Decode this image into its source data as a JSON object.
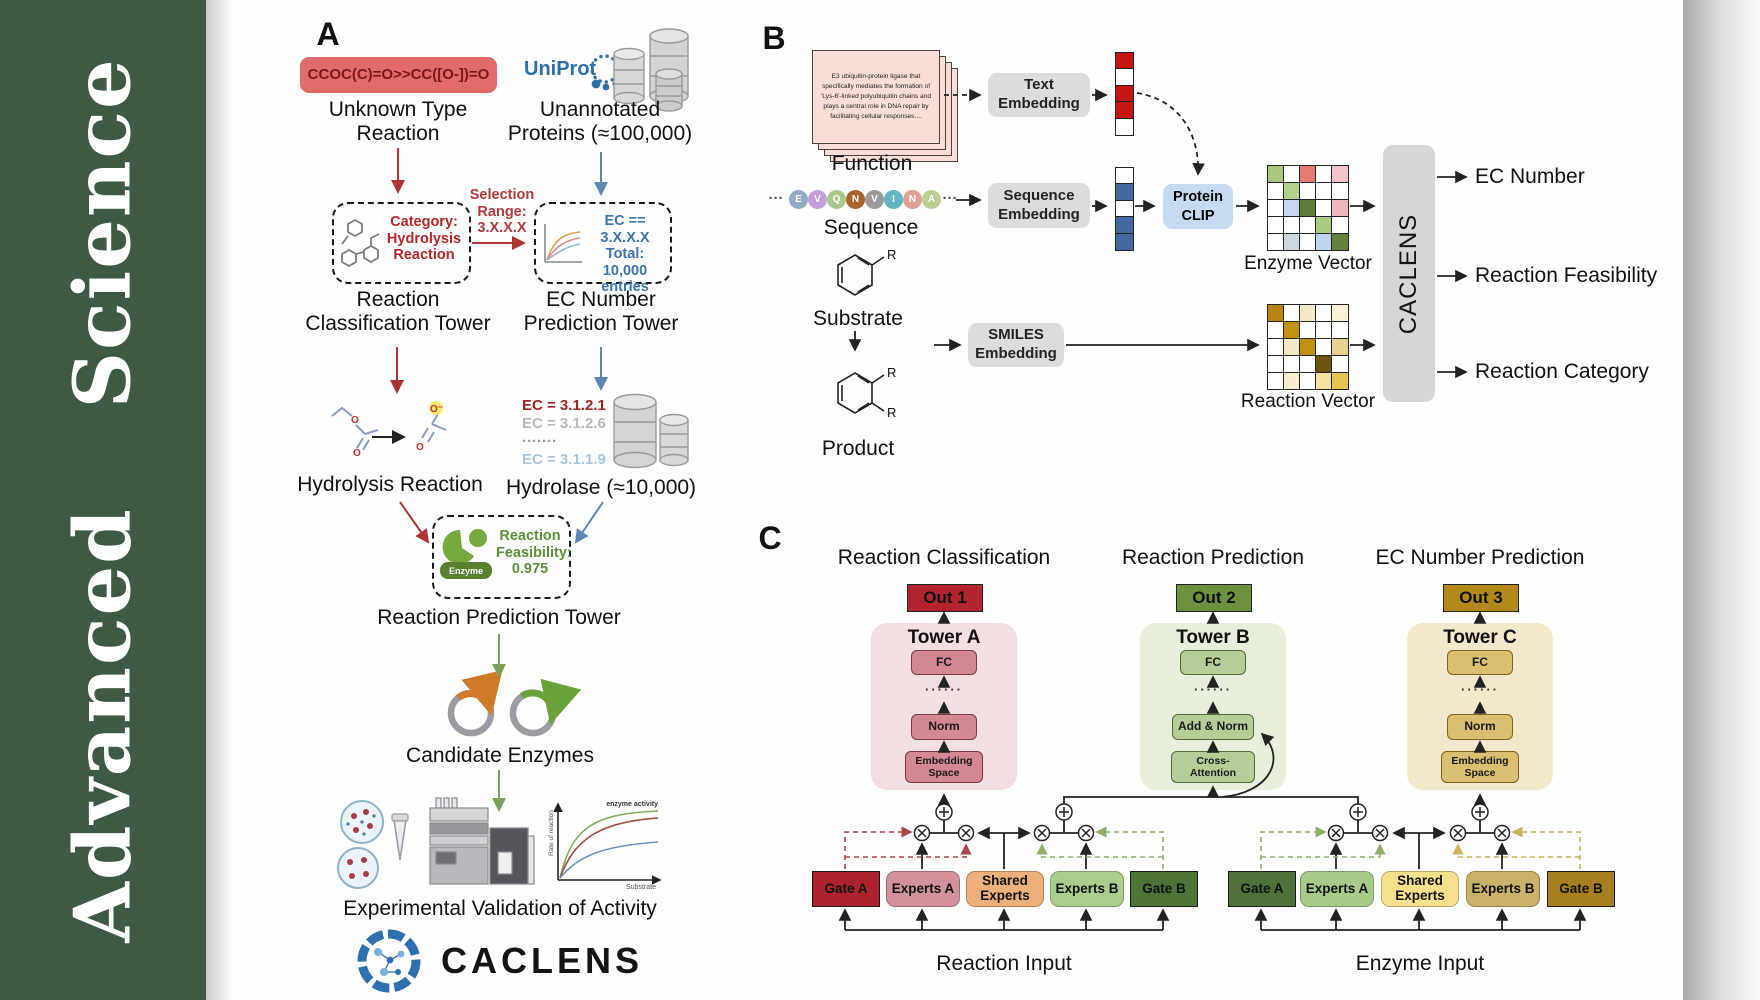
{
  "sidebar": {
    "journal_title": "Advanced Science"
  },
  "panelA": {
    "label": "A",
    "smiles": "CCOC(C)=O>>CC([O-])=O",
    "unknown_reaction_label": "Unknown Type\nReaction",
    "uniprot_wordmark": "UniProt",
    "unannotated_label": "Unannotated\nProteins (≈100,000)",
    "selection_range_label": "Selection\nRange:\n3.X.X.X",
    "category_box_text": "Category:\nHydrolysis\nReaction",
    "ec_box_text": "EC == 3.X.X.X\nTotal: 10,000\nentries",
    "reaction_classification_tower": "Reaction\nClassification Tower",
    "ec_number_prediction_tower": "EC Number\nPrediction Tower",
    "hydrolysis_reaction_label": "Hydrolysis Reaction",
    "ec_list": [
      {
        "text": "EC = 3.1.2.1",
        "color": "#9c2323"
      },
      {
        "text": "EC = 3.1.2.6",
        "color": "#b9b9b9"
      },
      {
        "text": "·······",
        "color": "#9a9a9a"
      },
      {
        "text": "EC = 3.1.1.9",
        "color": "#aac4de"
      }
    ],
    "hydrolase_label": "Hydrolase (≈10,000)",
    "enzyme_icon_label": "Enzyme",
    "feasibility_text": "Reaction\nFeasibility:\n0.975",
    "reaction_prediction_tower": "Reaction Prediction Tower",
    "candidate_enzymes_label": "Candidate Enzymes",
    "activity_graph": {
      "annotation": "enzyme activity",
      "ylabel": "Rate of reaction",
      "xlabel": "Substrate"
    },
    "experimental_validation_label": "Experimental Validation of Activity",
    "caclens_wordmark": "CACLENS"
  },
  "panelB": {
    "label": "B",
    "function_card_text": "E3 ubiquitin-protein ligase that specifically mediates the formation of 'Lys-6'-linked polyubiquitin chains and plays a central role in DNA repair by facilitating cellular responses....",
    "function_label": "Function",
    "ellipsis": "···",
    "sequence_residues": [
      {
        "letter": "E",
        "color": "#93aac6"
      },
      {
        "letter": "V",
        "color": "#c39edd"
      },
      {
        "letter": "Q",
        "color": "#a9c68f"
      },
      {
        "letter": "N",
        "color": "#a9622a"
      },
      {
        "letter": "V",
        "color": "#9a9a9a"
      },
      {
        "letter": "I",
        "color": "#62b4c2"
      },
      {
        "letter": "N",
        "color": "#e2a092"
      },
      {
        "letter": "A",
        "color": "#b9cf92"
      }
    ],
    "sequence_label": "Sequence",
    "substrate_label": "Substrate",
    "product_label": "Product",
    "r_group": "R",
    "text_embedding": "Text\nEmbedding",
    "sequence_embedding": "Sequence\nEmbedding",
    "smiles_embedding": "SMILES\nEmbedding",
    "protein_clip": "Protein\nCLIP",
    "text_vector_cells": [
      "#c41414",
      "#ffffff",
      "#c41414",
      "#c41414",
      "#ffffff"
    ],
    "sequence_vector_cells": [
      "#ffffff",
      "#44679e",
      "#ffffff",
      "#44679e",
      "#44679e"
    ],
    "enzyme_matrix": [
      [
        "#a9c77f",
        "#ffffff",
        "#e37c72",
        "#ffffff",
        "#f2c5cb"
      ],
      [
        "#ffffff",
        "#b3d08c",
        "#ffffff",
        "#ffffff",
        "#ffffff"
      ],
      [
        "#ffffff",
        "#c7d8ec",
        "#5c7a38",
        "#ffffff",
        "#f0b8bd"
      ],
      [
        "#ffffff",
        "#ffffff",
        "#ffffff",
        "#a9cc80",
        "#ffffff"
      ],
      [
        "#ffffff",
        "#ccd6e0",
        "#ffffff",
        "#bcd4ee",
        "#64823c"
      ]
    ],
    "reaction_matrix": [
      [
        "#b8860f",
        "#ffffff",
        "#f3e9c3",
        "#ffffff",
        "#faf2d8"
      ],
      [
        "#ffffff",
        "#c1920f",
        "#ffffff",
        "#ffffff",
        "#ffffff"
      ],
      [
        "#ffffff",
        "#f3e9c3",
        "#c1920f",
        "#ffffff",
        "#e6d193"
      ],
      [
        "#ffffff",
        "#ffffff",
        "#ffffff",
        "#6f5410",
        "#ffffff"
      ],
      [
        "#ffffff",
        "#f7eecb",
        "#ffffff",
        "#f3e3a1",
        "#e3c44d"
      ]
    ],
    "enzyme_vector_label": "Enzyme Vector",
    "reaction_vector_label": "Reaction Vector",
    "caclens_bar_label": "CACLENS",
    "outputs": [
      "EC Number",
      "Reaction Feasibility",
      "Reaction Category"
    ]
  },
  "panelC": {
    "label": "C",
    "headings": [
      "Reaction Classification",
      "Reaction Prediction",
      "EC Number Prediction"
    ],
    "outs": [
      "Out 1",
      "Out 2",
      "Out 3"
    ],
    "towers": [
      {
        "title": "Tower A",
        "layers": [
          "FC",
          "······",
          "Norm",
          "Embedding\nSpace"
        ]
      },
      {
        "title": "Tower B",
        "layers": [
          "FC",
          "······",
          "Add & Norm",
          "Cross-\nAttention"
        ]
      },
      {
        "title": "Tower C",
        "layers": [
          "FC",
          "······",
          "Norm",
          "Embedding\nSpace"
        ]
      }
    ],
    "moe1": {
      "boxes": [
        "Gate A",
        "Experts A",
        "Shared\nExperts",
        "Experts B",
        "Gate B"
      ],
      "input_label": "Reaction Input"
    },
    "moe2": {
      "boxes": [
        "Gate A",
        "Experts A",
        "Shared\nExperts",
        "Experts B",
        "Gate B"
      ],
      "input_label": "Enzyme Input"
    }
  }
}
